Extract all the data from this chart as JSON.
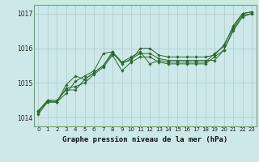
{
  "title": "Graphe pression niveau de la mer (hPa)",
  "bg_color": "#cce8e8",
  "grid_color": "#aacccc",
  "line_color": "#2d6a2d",
  "x_ticks": [
    0,
    1,
    2,
    3,
    4,
    5,
    6,
    7,
    8,
    9,
    10,
    11,
    12,
    13,
    14,
    15,
    16,
    17,
    18,
    19,
    20,
    21,
    22,
    23
  ],
  "ylim": [
    1013.75,
    1017.25
  ],
  "yticks": [
    1014,
    1015,
    1016,
    1017
  ],
  "line1": [
    1014.2,
    1014.5,
    1014.5,
    1014.8,
    1014.8,
    1015.1,
    1015.3,
    1015.5,
    1015.85,
    1015.6,
    1015.65,
    1016.0,
    1016.0,
    1015.8,
    1015.75,
    1015.75,
    1015.75,
    1015.75,
    1015.75,
    1015.8,
    1016.1,
    1016.6,
    1017.0,
    1017.05
  ],
  "line2": [
    1014.1,
    1014.45,
    1014.45,
    1014.95,
    1015.2,
    1015.1,
    1015.3,
    1015.5,
    1015.9,
    1015.55,
    1015.7,
    1015.85,
    1015.85,
    1015.7,
    1015.65,
    1015.65,
    1015.65,
    1015.65,
    1015.65,
    1015.65,
    1015.95,
    1016.55,
    1016.95,
    1017.0
  ],
  "line3": [
    1014.15,
    1014.5,
    1014.45,
    1014.7,
    1015.05,
    1015.2,
    1015.35,
    1015.85,
    1015.9,
    1015.6,
    1015.75,
    1015.9,
    1015.55,
    1015.65,
    1015.6,
    1015.6,
    1015.6,
    1015.6,
    1015.6,
    1015.85,
    1016.05,
    1016.65,
    1017.0,
    1017.05
  ],
  "line4": [
    1014.2,
    1014.45,
    1014.45,
    1014.85,
    1014.9,
    1015.0,
    1015.25,
    1015.45,
    1015.8,
    1015.35,
    1015.6,
    1015.75,
    1015.75,
    1015.6,
    1015.55,
    1015.55,
    1015.55,
    1015.55,
    1015.55,
    1015.75,
    1015.95,
    1016.5,
    1016.9,
    1017.0
  ],
  "marker": "D",
  "marker_size": 1.8,
  "linewidth": 0.7,
  "tick_fontsize": 5.0,
  "xlabel_fontsize": 6.5
}
